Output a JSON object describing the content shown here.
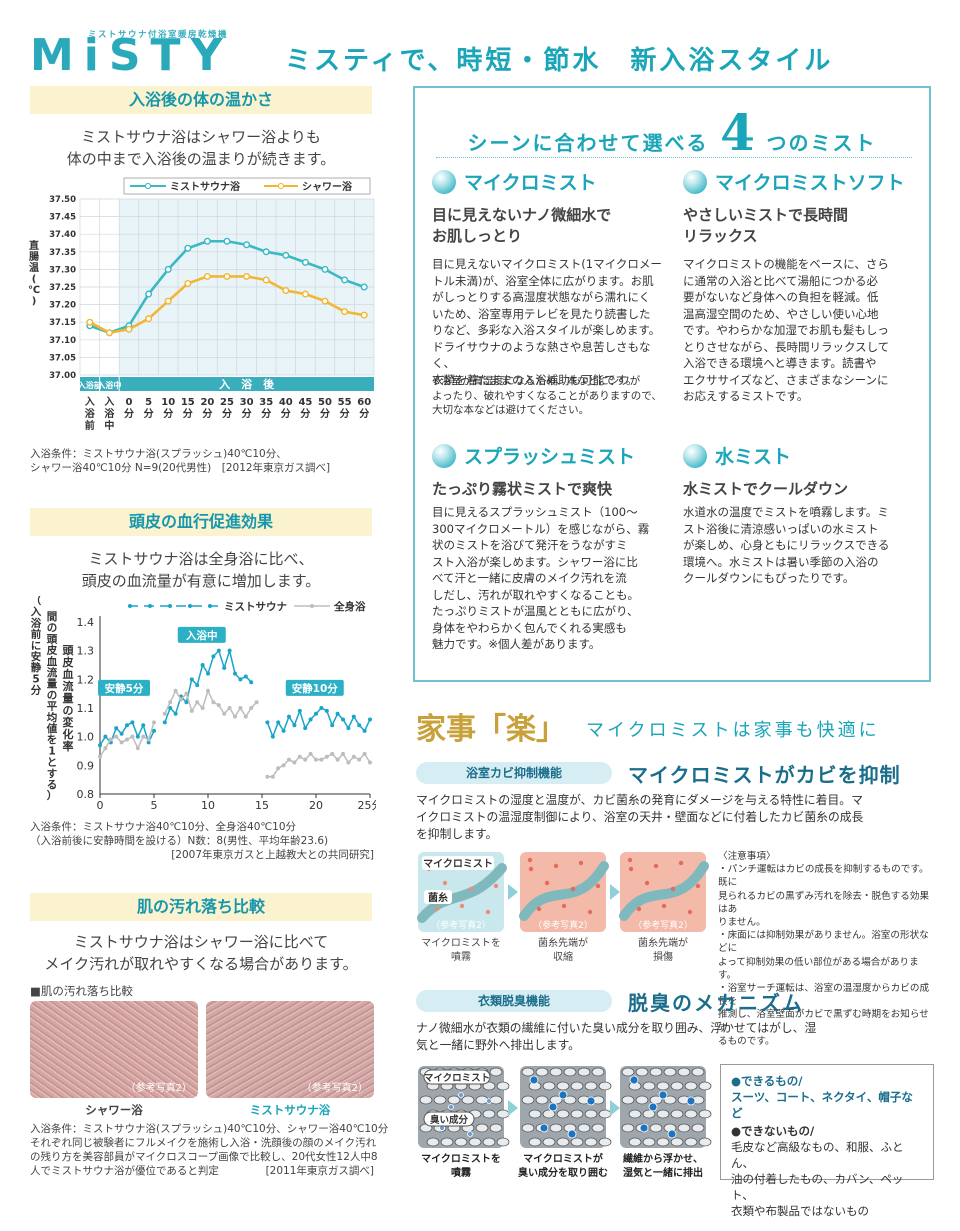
{
  "header": {
    "logo": "MiSTY",
    "logo_sub": "ミストサウナ付浴室暖房乾燥機",
    "tagline": "ミスティで、時短・節水　新入浴スタイル"
  },
  "warmth": {
    "heading": "入浴後の体の温かさ",
    "lead1": "ミストサウナ浴はシャワー浴よりも",
    "lead2": "体の中まで入浴後の温まりが続きます。",
    "legend_mist": "ミストサウナ浴",
    "legend_shower": "シャワー浴",
    "ylabel": "直腸温(℃)",
    "phase_before": "入浴前",
    "phase_during": "入浴中",
    "phase_after": "入　浴　後",
    "note1": "入浴条件：ミストサウナ浴(スプラッシュ)40℃10分、",
    "note2": "シャワー浴40℃10分 N=9(20代男性)　[2012年東京ガス調べ]"
  },
  "scalp": {
    "heading": "頭皮の血行促進効果",
    "lead1": "ミストサウナ浴は全身浴に比べ、",
    "lead2": "頭皮の血流量が有意に増加します。",
    "legend_mist": "ミストサウナ",
    "legend_bath": "全身浴",
    "ylabel_outer": "（入浴前に安静5分間の頭皮血流量の平均値を1とする）",
    "ylabel_inner": "頭皮血流量の変化率",
    "label_rest5": "安静5分",
    "label_bathing": "入浴中",
    "label_rest10": "安静10分",
    "xunit": "分",
    "note1": "入浴条件：ミストサウナ浴40℃10分、全身浴40℃10分",
    "note2": "（入浴前後に安静時間を設ける）N数：8(男性、平均年齢23.6)",
    "note3": "[2007年東京ガスと上越教大との共同研究]"
  },
  "skin": {
    "heading": "肌の汚れ落ち比較",
    "lead1": "ミストサウナ浴はシャワー浴に比べて",
    "lead2": "メイク汚れが取れやすくなる場合があります。",
    "fig_title": "■肌の汚れ落ち比較",
    "photo_note": "（参考写真2）",
    "cap_shower": "シャワー浴",
    "cap_mist": "ミストサウナ浴",
    "note1": "入浴条件：ミストサウナ浴(スプラッシュ)40℃10分、シャワー浴40℃10分",
    "note2": "それぞれ同じ被験者にフルメイクを施術し入浴・洗顔後の顔のメイク汚れ",
    "note3": "の残り方を美容部員がマイクロスコープ画像で比較し、20代女性12人中8",
    "note4": "人でミストサウナ浴が優位であると判定",
    "note5": "[2011年東京ガス調べ]"
  },
  "mists": {
    "title_pre": "シーンに合わせて選べる",
    "title_num": "4",
    "title_post": "つのミスト",
    "items": [
      {
        "name": "マイクロミスト",
        "sub1": "目に見えないナノ微細水で",
        "sub2": "お肌しっとり",
        "body": [
          "目に見えないマイクロミスト(1マイクロメー",
          "トル未満)が、浴室全体に広がります。お肌",
          "がしっとりする高湿度状態ながら濡れにく",
          "いため、浴室専用テレビを見たり読書した",
          "りなど、多彩な入浴スタイルが楽しめます。",
          "ドライサウナのような熱さや息苦しさもなく、",
          "衣類を着たままの入浴補助も可能です。"
        ],
        "note": [
          "※浴室が高湿度になるため、本などにシワが",
          "よったり、破れやすくなることがありますので、",
          "大切な本などは避けてください。"
        ]
      },
      {
        "name": "マイクロミストソフト",
        "sub1": "やさしいミストで長時間",
        "sub2": "リラックス",
        "body": [
          "マイクロミストの機能をベースに、さら",
          "に通常の入浴と比べて湯船につかる必",
          "要がないなど身体への負担を軽減。低",
          "温高湿空間のため、やさしい使い心地",
          "です。やわらかな加湿でお肌も髪もしっ",
          "とりさせながら、長時間リラックスして",
          "入浴できる環境へと導きます。読書や",
          "エクササイズなど、さまざまなシーンに",
          "お応えするミストです。"
        ]
      },
      {
        "name": "スプラッシュミスト",
        "sub1": "たっぷり霧状ミストで爽快",
        "body": [
          "目に見えるスプラッシュミスト（100〜",
          "300マイクロメートル）を感じながら、霧",
          "状のミストを浴びて発汗をうながすミ",
          "スト入浴が楽しめます。シャワー浴に比",
          "べて汗と一緒に皮膚のメイク汚れを流",
          "しだし、汚れが取れやすくなることも。",
          "たっぷりミストが温風とともに広がり、",
          "身体をやわらかく包んでくれる実感も",
          "魅力です。※個人差があります。"
        ]
      },
      {
        "name": "水ミスト",
        "sub1": "水ミストでクールダウン",
        "body": [
          "水道水の温度でミストを噴霧します。ミ",
          "スト浴後に清涼感いっぱいの水ミスト",
          "が楽しめ、心身ともにリラックスできる",
          "環境へ。水ミストは暑い季節の入浴の",
          "クールダウンにもぴったりです。"
        ]
      }
    ]
  },
  "chores": {
    "title1": "家事「楽」",
    "title2": "マイクロミストは家事も快適に",
    "mold": {
      "pill": "浴室カビ抑制機能",
      "heading": "マイクロミストがカビを抑制",
      "body": [
        "マイクロミストの湿度と温度が、カビ菌糸の発育にダメージを与える特性に着目。マ",
        "イクロミストの温湿度制御により、浴室の天井・壁面などに付着したカビ菌糸の成長",
        "を抑制します。"
      ],
      "label_mist": "マイクロミスト",
      "label_hypha": "菌糸",
      "photo_note": "（参考写真2）",
      "caps": [
        [
          "マイクロミストを",
          "噴霧"
        ],
        [
          "菌糸先端が",
          "収縮"
        ],
        [
          "菌糸先端が",
          "損傷"
        ]
      ],
      "notes": [
        "〈注意事項〉",
        "・パンチ運転はカビの成長を抑制するものです。既に",
        "見られるカビの黒ずみ汚れを除去・脱色する効果はあ",
        "りません。",
        "・床面には抑制効果がありません。浴室の形状などに",
        "よって抑制効果の低い部位がある場合があります。",
        "・浴室サーチ運転は、浴室の温湿度からカビの成長を",
        "推測し、浴室壁面がカビで黒ずむ時期をお知らせす",
        "るものです。"
      ]
    },
    "odor": {
      "pill": "衣類脱臭機能",
      "heading": "脱臭のメカニズム",
      "body": [
        "ナノ微細水が衣類の繊維に付いた臭い成分を取り囲み、浮かせてはがし、湿",
        "気と一緒に野外へ排出します。"
      ],
      "label_mist": "マイクロミスト",
      "label_smell": "臭い成分",
      "caps": [
        [
          "マイクロミストを",
          "噴霧"
        ],
        [
          "マイクロミストが",
          "臭い成分を取り囲む"
        ],
        [
          "繊維から浮かせ、",
          "湿気と一緒に排出"
        ]
      ],
      "ok_title": "●できるもの/",
      "ok_body": "スーツ、コート、ネクタイ、帽子など",
      "ng_title": "●できないもの/",
      "ng_body": [
        "毛皮など高級なもの、和服、ふとん、",
        "油の付着したもの、カバン、ペット、",
        "衣類や布製品ではないもの"
      ]
    }
  },
  "chart_data": [
    {
      "type": "line",
      "title": "",
      "xlabel": "",
      "ylabel": "直腸温(℃)",
      "categories": [
        "入浴前",
        "入浴中",
        "0分",
        "5分",
        "10分",
        "15分",
        "20分",
        "25分",
        "30分",
        "35分",
        "40分",
        "45分",
        "50分",
        "55分",
        "60分"
      ],
      "ylim": [
        37.0,
        37.5
      ],
      "series": [
        {
          "name": "ミストサウナ浴",
          "values": [
            37.14,
            37.12,
            37.14,
            37.23,
            37.3,
            37.36,
            37.38,
            37.38,
            37.37,
            37.35,
            37.34,
            37.32,
            37.3,
            37.27,
            37.25
          ]
        },
        {
          "name": "シャワー浴",
          "values": [
            37.15,
            37.12,
            37.13,
            37.16,
            37.21,
            37.26,
            37.28,
            37.28,
            37.28,
            37.27,
            37.24,
            37.23,
            37.21,
            37.18,
            37.17
          ]
        }
      ]
    },
    {
      "type": "line",
      "title": "",
      "xlabel": "分",
      "ylabel": "頭皮血流量の変化率",
      "xlim": [
        0,
        25
      ],
      "ylim": [
        0.8,
        1.4
      ],
      "x": [
        0,
        0.5,
        1,
        1.5,
        2,
        2.5,
        3,
        3.5,
        4,
        4.5,
        5,
        5.5,
        6,
        6.5,
        7,
        7.5,
        8,
        8.5,
        9,
        9.5,
        10,
        10.5,
        11,
        11.5,
        12,
        12.5,
        13,
        13.5,
        14,
        14.5,
        15,
        15.5,
        16,
        16.5,
        17,
        17.5,
        18,
        18.5,
        19,
        19.5,
        20,
        20.5,
        21,
        21.5,
        22,
        22.5,
        23,
        23.5,
        24,
        24.5,
        25
      ],
      "series": [
        {
          "name": "ミストサウナ",
          "values": [
            0.97,
            1.0,
            0.98,
            1.03,
            1.01,
            1.04,
            1.05,
            1.0,
            1.04,
            0.98,
            1.02,
            null,
            1.05,
            1.1,
            1.08,
            1.14,
            1.12,
            1.2,
            1.18,
            1.25,
            1.22,
            1.28,
            1.3,
            1.24,
            1.3,
            1.22,
            1.2,
            1.21,
            1.19,
            null,
            null,
            1.05,
            1.0,
            1.05,
            1.02,
            1.07,
            1.04,
            1.09,
            1.03,
            1.06,
            1.08,
            1.1,
            1.09,
            1.04,
            1.08,
            1.06,
            1.03,
            1.07,
            1.04,
            1.02,
            1.06
          ]
        },
        {
          "name": "全身浴",
          "values": [
            0.93,
            0.96,
            0.99,
            1.0,
            0.98,
            0.99,
            1.0,
            0.96,
            1.0,
            0.99,
            1.05,
            null,
            1.08,
            1.12,
            1.16,
            1.13,
            1.15,
            1.09,
            1.12,
            1.1,
            1.16,
            1.12,
            1.11,
            1.08,
            1.1,
            1.07,
            1.1,
            1.07,
            1.1,
            1.12,
            null,
            0.86,
            0.86,
            0.89,
            0.9,
            0.92,
            0.91,
            0.93,
            0.92,
            0.94,
            0.92,
            0.92,
            0.93,
            0.94,
            0.92,
            0.94,
            0.91,
            0.93,
            0.92,
            0.94,
            0.91
          ]
        }
      ]
    }
  ]
}
